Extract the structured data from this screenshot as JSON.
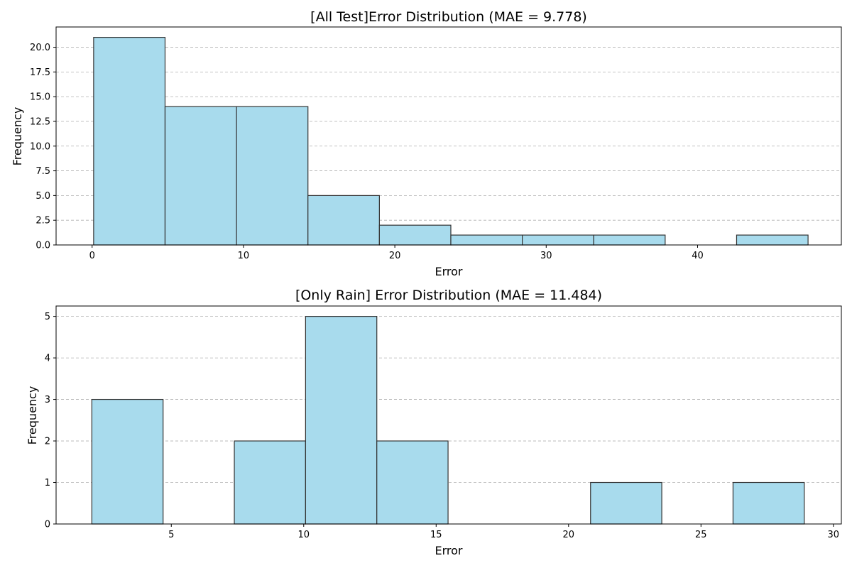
{
  "chart_data": [
    {
      "type": "histogram",
      "title": "[All Test]Error Distribution (MAE = 9.778)",
      "xlabel": "Error",
      "ylabel": "Frequency",
      "xlim": [
        -2.38,
        49.5
      ],
      "ylim": [
        0,
        22.05
      ],
      "xticks": [
        0,
        10,
        20,
        30,
        40
      ],
      "xtick_labels": [
        "0",
        "10",
        "20",
        "30",
        "40"
      ],
      "yticks": [
        0,
        2.5,
        5,
        7.5,
        10,
        12.5,
        15,
        17.5,
        20
      ],
      "ytick_labels": [
        "0.0",
        "2.5",
        "5.0",
        "7.5",
        "10.0",
        "12.5",
        "15.0",
        "17.5",
        "20.0"
      ],
      "grid": "y-dashed",
      "bin_edges": [
        0.1,
        4.82,
        9.54,
        14.26,
        18.98,
        23.7,
        28.42,
        33.14,
        37.86,
        42.58,
        47.3
      ],
      "values": [
        21,
        14,
        14,
        5,
        2,
        1,
        1,
        1,
        0,
        1
      ],
      "bar_color": "#a8dbed",
      "edge_color": "#333333"
    },
    {
      "type": "histogram",
      "title": "[Only Rain] Error Distribution (MAE = 11.484)",
      "xlabel": "Error",
      "ylabel": "Frequency",
      "xlim": [
        0.65,
        30.3
      ],
      "ylim": [
        0,
        5.25
      ],
      "xticks": [
        5,
        10,
        15,
        20,
        25,
        30
      ],
      "xtick_labels": [
        "5",
        "10",
        "15",
        "20",
        "25",
        "30"
      ],
      "yticks": [
        0,
        1,
        2,
        3,
        4,
        5
      ],
      "ytick_labels": [
        "0",
        "1",
        "2",
        "3",
        "4",
        "5"
      ],
      "grid": "y-dashed",
      "bin_edges": [
        2.0,
        4.69,
        7.38,
        10.07,
        12.76,
        15.45,
        18.14,
        20.83,
        23.52,
        26.21,
        28.9
      ],
      "values": [
        3,
        0,
        2,
        5,
        2,
        0,
        0,
        1,
        0,
        1
      ],
      "bar_color": "#a8dbed",
      "edge_color": "#333333"
    }
  ]
}
